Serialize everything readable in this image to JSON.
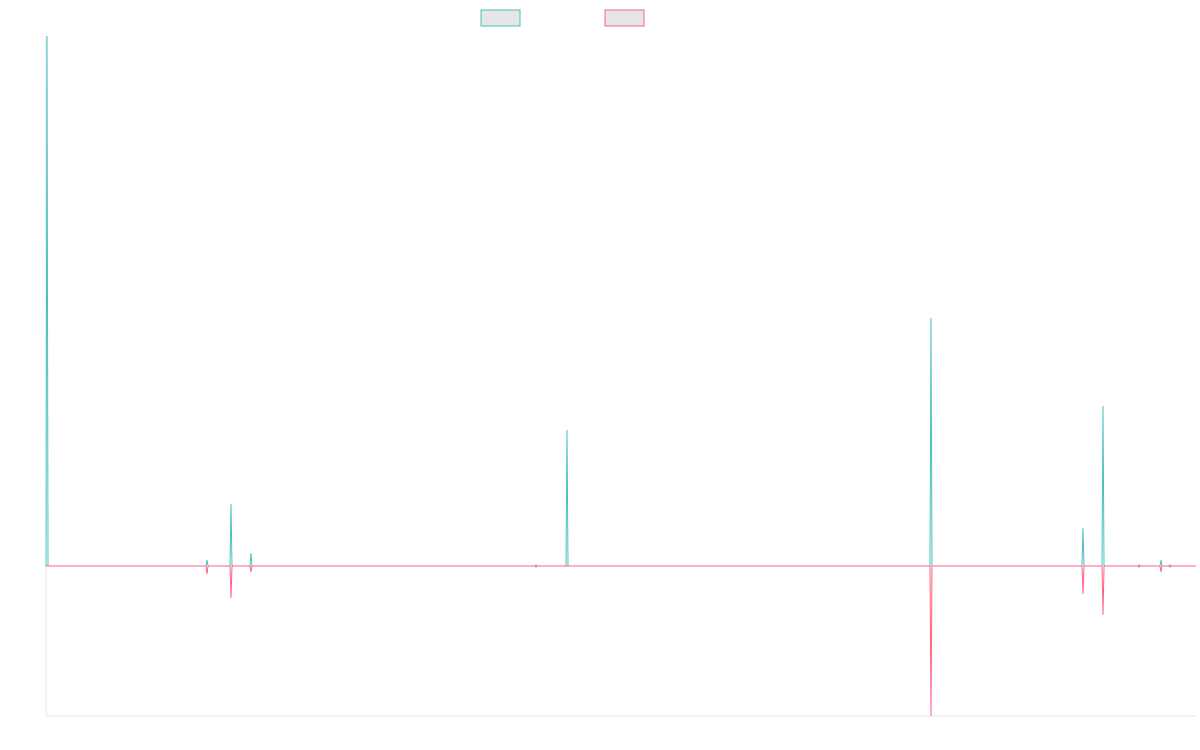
{
  "chart_data": {
    "type": "line",
    "title": "",
    "xlabel": "",
    "ylabel": "",
    "legend_position": "top-center",
    "grid": false,
    "xlim": [
      0,
      1150
    ],
    "ylim": [
      -150,
      530
    ],
    "x": [
      0,
      1,
      2,
      3,
      160,
      161,
      162,
      184,
      185,
      186,
      204,
      205,
      206,
      489,
      490,
      491,
      519,
      520,
      521,
      522,
      882,
      883,
      884,
      885,
      886,
      887,
      1036,
      1037,
      1038,
      1056,
      1057,
      1058,
      1092,
      1093,
      1094,
      1114,
      1115,
      1116,
      1123,
      1124,
      1125,
      1150
    ],
    "series": [
      {
        "name": "",
        "color": "#4bc0c0",
        "fill": "#e6e6e6",
        "values": [
          0,
          530,
          0,
          0,
          0,
          6,
          0,
          0,
          62,
          0,
          0,
          13,
          0,
          0,
          1,
          0,
          0,
          0,
          136,
          0,
          0,
          0,
          0,
          248,
          0,
          0,
          0,
          38,
          0,
          0,
          160,
          0,
          0,
          1,
          0,
          0,
          6,
          0,
          0,
          1,
          0,
          0
        ]
      },
      {
        "name": "",
        "color": "#ff6384",
        "fill": "#e6e6e6",
        "values": [
          0,
          0,
          0,
          0,
          0,
          -8,
          0,
          0,
          -32,
          0,
          0,
          -6,
          0,
          0,
          -1,
          0,
          0,
          0,
          0,
          0,
          0,
          0,
          0,
          -150,
          0,
          0,
          0,
          -28,
          0,
          0,
          -49,
          0,
          0,
          -1,
          0,
          0,
          -6,
          0,
          0,
          -1,
          0,
          0
        ]
      }
    ]
  }
}
